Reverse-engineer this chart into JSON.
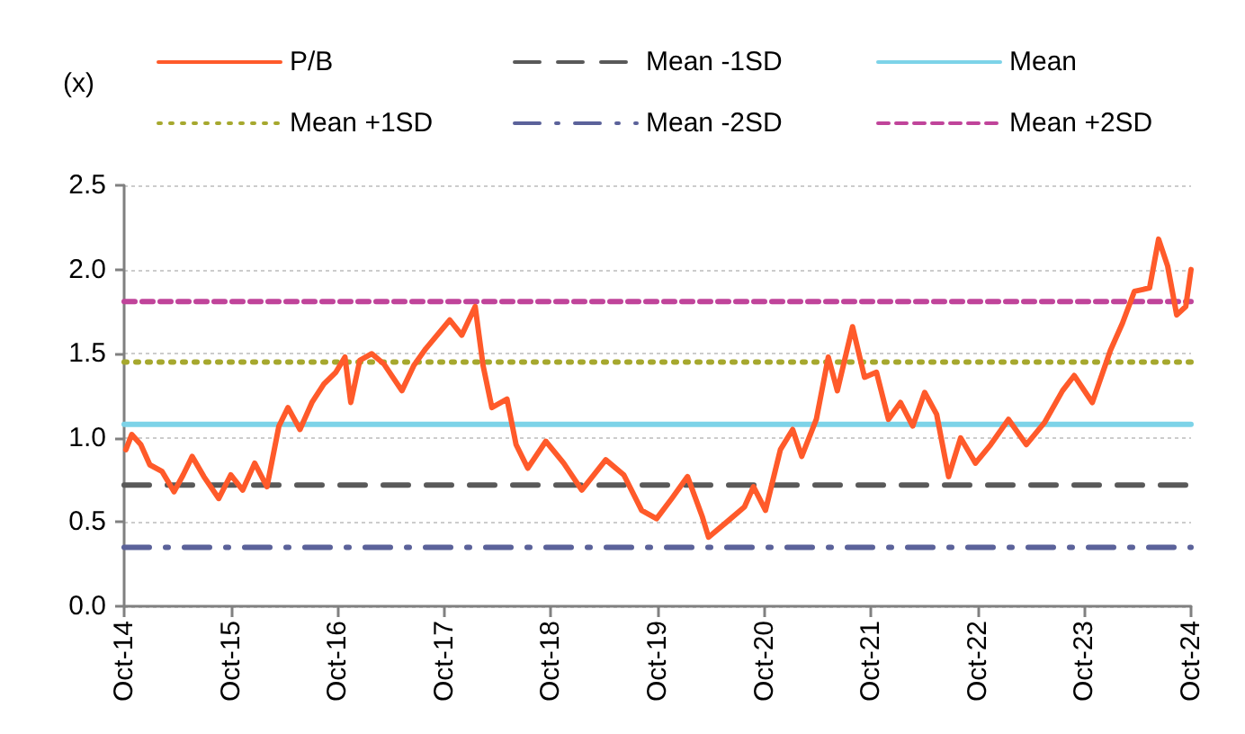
{
  "chart_data": {
    "type": "line",
    "ylabel": "(x)",
    "xlim": [
      "2014-10-01",
      "2024-10-01"
    ],
    "xticks": [
      {
        "value": "2014-10-01",
        "label": "Oct-14"
      },
      {
        "value": "2015-10-01",
        "label": "Oct-15"
      },
      {
        "value": "2016-10-01",
        "label": "Oct-16"
      },
      {
        "value": "2017-10-01",
        "label": "Oct-17"
      },
      {
        "value": "2018-10-01",
        "label": "Oct-18"
      },
      {
        "value": "2019-10-01",
        "label": "Oct-19"
      },
      {
        "value": "2020-10-01",
        "label": "Oct-20"
      },
      {
        "value": "2021-10-01",
        "label": "Oct-21"
      },
      {
        "value": "2022-10-01",
        "label": "Oct-22"
      },
      {
        "value": "2023-10-01",
        "label": "Oct-23"
      },
      {
        "value": "2024-10-01",
        "label": "Oct-24"
      }
    ],
    "ylim": [
      0,
      2.5
    ],
    "yticks": [
      {
        "value": 0,
        "label": "0.0"
      },
      {
        "value": 0.5,
        "label": "0.5"
      },
      {
        "value": 1,
        "label": "1.0"
      },
      {
        "value": 1.5,
        "label": "1.5"
      },
      {
        "value": 2,
        "label": "2.0"
      },
      {
        "value": 2.5,
        "label": "2.5"
      }
    ],
    "grid": "y",
    "legend": "top",
    "marker": "none",
    "series": [
      {
        "name": "P/B",
        "color": "#ff5a2a",
        "line_style": "solid",
        "x": [
          "2014-10-07",
          "2014-10-27",
          "2014-11-27",
          "2014-12-28",
          "2015-02-08",
          "2015-03-21",
          "2015-04-21",
          "2015-05-22",
          "2015-07-01",
          "2015-08-21",
          "2015-10-01",
          "2015-11-11",
          "2015-12-22",
          "2016-02-02",
          "2016-03-14",
          "2016-04-14",
          "2016-05-25",
          "2016-07-05",
          "2016-08-15",
          "2016-09-25",
          "2016-10-26",
          "2016-11-15",
          "2016-12-16",
          "2017-01-26",
          "2017-03-08",
          "2017-05-09",
          "2017-06-19",
          "2017-07-30",
          "2017-10-20",
          "2017-11-30",
          "2018-01-15",
          "2018-02-11",
          "2018-03-13",
          "2018-05-04",
          "2018-06-04",
          "2018-07-14",
          "2018-09-14",
          "2018-11-14",
          "2019-01-15",
          "2019-04-07",
          "2019-06-08",
          "2019-08-08",
          "2019-09-28",
          "2019-11-19",
          "2020-01-12",
          "2020-03-03",
          "2020-03-24",
          "2020-05-25",
          "2020-07-25",
          "2020-08-25",
          "2020-10-05",
          "2020-11-25",
          "2021-01-06",
          "2021-02-06",
          "2021-03-28",
          "2021-05-08",
          "2021-06-08",
          "2021-07-30",
          "2021-09-09",
          "2021-10-20",
          "2021-11-30",
          "2022-01-10",
          "2022-02-21",
          "2022-04-03",
          "2022-05-14",
          "2022-06-24",
          "2022-08-04",
          "2022-09-24",
          "2022-11-15",
          "2023-01-15",
          "2023-03-17",
          "2023-05-18",
          "2023-07-19",
          "2023-08-28",
          "2023-10-29",
          "2023-12-30",
          "2024-02-09",
          "2024-03-21",
          "2024-05-12",
          "2024-06-12",
          "2024-07-13",
          "2024-08-13",
          "2024-09-13",
          "2024-10-01"
        ],
        "values": [
          0.93,
          1.02,
          0.96,
          0.84,
          0.8,
          0.68,
          0.78,
          0.89,
          0.77,
          0.64,
          0.78,
          0.69,
          0.85,
          0.71,
          1.07,
          1.18,
          1.05,
          1.21,
          1.32,
          1.39,
          1.48,
          1.21,
          1.46,
          1.5,
          1.44,
          1.28,
          1.43,
          1.53,
          1.7,
          1.61,
          1.78,
          1.43,
          1.18,
          1.23,
          0.96,
          0.82,
          0.98,
          0.85,
          0.69,
          0.87,
          0.78,
          0.57,
          0.52,
          0.64,
          0.77,
          0.53,
          0.41,
          0.5,
          0.59,
          0.71,
          0.57,
          0.93,
          1.05,
          0.89,
          1.11,
          1.48,
          1.28,
          1.66,
          1.36,
          1.39,
          1.11,
          1.21,
          1.07,
          1.27,
          1.14,
          0.77,
          1.0,
          0.85,
          0.96,
          1.11,
          0.96,
          1.09,
          1.28,
          1.37,
          1.21,
          1.52,
          1.68,
          1.87,
          1.89,
          2.18,
          2.02,
          1.73,
          1.78,
          2.0
        ]
      },
      {
        "name": "Mean -1SD",
        "color": "#595959",
        "line_style": "longdash",
        "x": [
          "2014-10-01",
          "2024-10-01"
        ],
        "values": [
          0.72,
          0.72
        ]
      },
      {
        "name": "Mean",
        "color": "#7dd3e8",
        "line_style": "solid",
        "x": [
          "2014-10-01",
          "2024-10-01"
        ],
        "values": [
          1.08,
          1.08
        ]
      },
      {
        "name": "Mean +1SD",
        "color": "#a6a82e",
        "line_style": "dotted",
        "x": [
          "2014-10-01",
          "2024-10-01"
        ],
        "values": [
          1.45,
          1.45
        ]
      },
      {
        "name": "Mean -2SD",
        "color": "#5b629a",
        "line_style": "dashdot",
        "x": [
          "2014-10-01",
          "2024-10-01"
        ],
        "values": [
          0.35,
          0.35
        ]
      },
      {
        "name": "Mean +2SD",
        "color": "#c0449a",
        "line_style": "dashed",
        "x": [
          "2014-10-01",
          "2024-10-01"
        ],
        "values": [
          1.81,
          1.81
        ]
      }
    ]
  }
}
